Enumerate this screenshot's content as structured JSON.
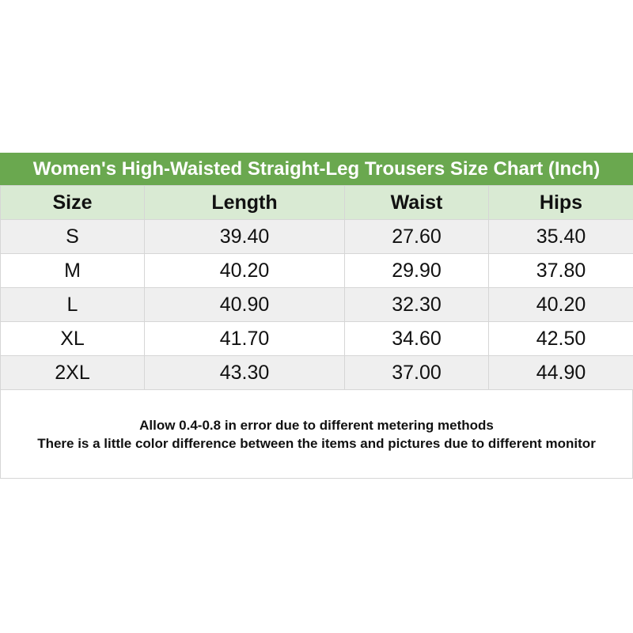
{
  "title": "Women's High-Waisted Straight-Leg Trousers Size Chart (Inch)",
  "columns": [
    "Size",
    "Length",
    "Waist",
    "Hips"
  ],
  "rows": [
    [
      "S",
      "39.40",
      "27.60",
      "35.40"
    ],
    [
      "M",
      "40.20",
      "29.90",
      "37.80"
    ],
    [
      "L",
      "40.90",
      "32.30",
      "40.20"
    ],
    [
      "XL",
      "41.70",
      "34.60",
      "42.50"
    ],
    [
      "2XL",
      "43.30",
      "37.00",
      "44.90"
    ]
  ],
  "notes": [
    "Allow 0.4-0.8 in error due to different metering methods",
    "There is a little color difference between the items and pictures due to different monitor"
  ],
  "colors": {
    "title_bg": "#6aa84f",
    "header_bg": "#d9ead3",
    "stripe_bg": "#efefef"
  }
}
